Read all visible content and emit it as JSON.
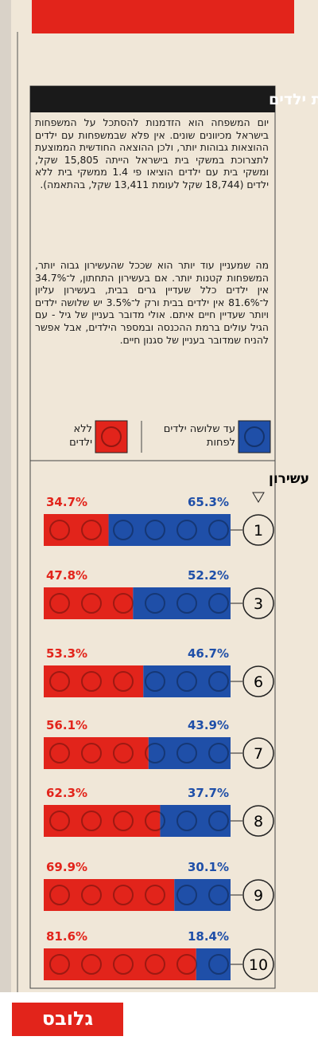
{
  "headline": "לעשירים יש פחות ילדים",
  "paragraphs": [
    "יום המשפחה הוא הזדמנות להסתכל על המשפחות בישראל מכיוונים שונים. אין פלא שבמשפחות עם ילדים ההוצאות גבוהות יותר, ולכן ההוצאה החודשית הממוצעת לתצרוכת במשקי בית בישראל הייתה 15,805 שקל, ומשקי בית עם ילדים הוציאו פי 1.4 ממשקי בית ללא ילדים (18,744 שקל לעומת 13,411 שקל, בהתאמה).",
    "מה שמעניין עוד יותר הוא שככל שהעשירון גבוה יותר, המשפחות קטנות יותר. אם בעשירון התחתון, ל־34.7% אין ילדים כלל שעדיין גרים בבית, בעשירון עליון ל־81.6% אין ילדים בבית ורק ל־3.5% יש שלושה ילדים ויותר שעדיין חיים איתם. אולי מדובר בעניין של גיל - עם הגיל עולים ברמת ההכנסה ובמספר הילדים, אבל אפשר להניח שמדובר בעניין של סגנון חיים."
  ],
  "logo": "גלובס",
  "chart_data": {
    "type": "bar",
    "orientation": "horizontal",
    "stacked": true,
    "title": "עשירון",
    "categories": [
      "1",
      "3",
      "6",
      "7",
      "8",
      "9",
      "10"
    ],
    "series": [
      {
        "name": "ללא ילדים",
        "color": "#e2241b",
        "values": [
          34.7,
          47.8,
          53.3,
          56.1,
          62.3,
          69.9,
          81.6
        ],
        "value_labels": [
          "34.7%",
          "47.8%",
          "53.3%",
          "56.1%",
          "62.3%",
          "69.9%",
          "81.6%"
        ]
      },
      {
        "name": "עד שלושה ילדים לפחות",
        "color": "#1f4fa8",
        "values": [
          65.3,
          52.2,
          46.7,
          43.9,
          37.7,
          30.1,
          18.4
        ],
        "value_labels": [
          "65.3%",
          "52.2%",
          "46.7%",
          "43.9%",
          "37.7%",
          "30.1%",
          "18.4%"
        ]
      }
    ]
  }
}
